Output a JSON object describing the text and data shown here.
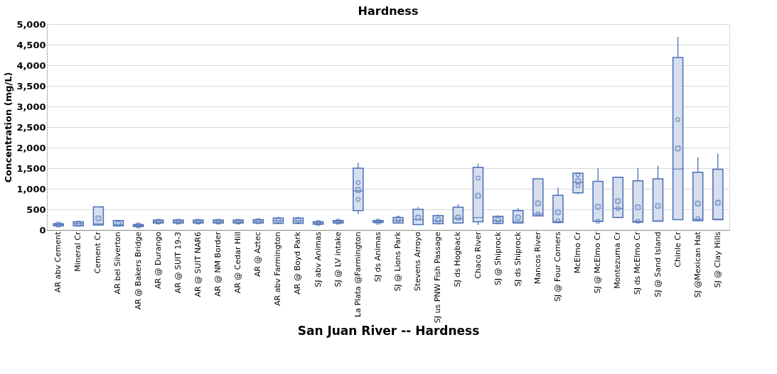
{
  "chart_data": {
    "type": "box",
    "title": "Hardness",
    "xlabel": "San Juan River -- Hardness",
    "ylabel": "Concentration (mg/L)",
    "categories": [
      "AR abv Cement",
      "Mineral Cr",
      "Cement Cr",
      "AR bel Silverton",
      "AR @ Bakers Bridge",
      "AR @ Durango",
      "AR @ SUIT 19-3",
      "AR @ SUIT NAR6",
      "AR @ NM Border",
      "AR @ Cedar Hill",
      "AR @ Aztec",
      "AR abv Farmington",
      "AR @ Boyd Park",
      "SJ abv Animas",
      "SJ @ LV intake",
      "La Plata @Farmington",
      "SJ ds Animas",
      "SJ @ Lions Park",
      "Stevens Arroyo",
      "SJ us PNW Fish Passage",
      "SJ ds Hogback",
      "Chaco River",
      "SJ @ Shiprock",
      "SJ ds Shiprock",
      "Mancos River",
      "SJ @ Four Corners",
      "McElmo Cr",
      "SJ @ McElmo Cr",
      "Montezuma Cr",
      "SJ ds McElmo Cr",
      "SJ @ Sand Island",
      "Chinle Cr",
      "SJ @Mexican Hat",
      "SJ @ Clay Hills"
    ],
    "color": "#4a6fb5",
    "boxes": [
      {
        "low": 80,
        "q1": 100,
        "median": 130,
        "q3": 150,
        "high": 170,
        "mean": 130
      },
      {
        "low": 90,
        "q1": 100,
        "median": 150,
        "q3": 200,
        "high": 210,
        "mean": 150
      },
      {
        "low": 100,
        "q1": 120,
        "median": 150,
        "q3": 560,
        "high": 560,
        "mean": 280
      },
      {
        "low": 90,
        "q1": 100,
        "median": 130,
        "q3": 230,
        "high": 230,
        "mean": 150
      },
      {
        "low": 60,
        "q1": 80,
        "median": 110,
        "q3": 130,
        "high": 160,
        "mean": 110
      },
      {
        "low": 150,
        "q1": 170,
        "median": 200,
        "q3": 240,
        "high": 260,
        "mean": 200
      },
      {
        "low": 150,
        "q1": 170,
        "median": 200,
        "q3": 240,
        "high": 260,
        "mean": 200
      },
      {
        "low": 150,
        "q1": 170,
        "median": 200,
        "q3": 240,
        "high": 260,
        "mean": 200
      },
      {
        "low": 150,
        "q1": 170,
        "median": 200,
        "q3": 240,
        "high": 260,
        "mean": 200
      },
      {
        "low": 150,
        "q1": 170,
        "median": 200,
        "q3": 240,
        "high": 260,
        "mean": 200
      },
      {
        "low": 150,
        "q1": 170,
        "median": 210,
        "q3": 250,
        "high": 270,
        "mean": 210
      },
      {
        "low": 140,
        "q1": 160,
        "median": 220,
        "q3": 290,
        "high": 320,
        "mean": 230
      },
      {
        "low": 140,
        "q1": 160,
        "median": 220,
        "q3": 290,
        "high": 320,
        "mean": 230
      },
      {
        "low": 120,
        "q1": 140,
        "median": 170,
        "q3": 200,
        "high": 220,
        "mean": 170
      },
      {
        "low": 160,
        "q1": 170,
        "median": 200,
        "q3": 230,
        "high": 240,
        "mean": 200
      },
      {
        "low": 390,
        "q1": 470,
        "median": 950,
        "q3": 1500,
        "high": 1630,
        "mean": 970,
        "outliers": [
          740,
          1150
        ]
      },
      {
        "low": 170,
        "q1": 180,
        "median": 200,
        "q3": 230,
        "high": 240,
        "mean": 200
      },
      {
        "low": 150,
        "q1": 170,
        "median": 230,
        "q3": 300,
        "high": 350,
        "mean": 260
      },
      {
        "low": 120,
        "q1": 130,
        "median": 250,
        "q3": 500,
        "high": 560,
        "mean": 300
      },
      {
        "low": 130,
        "q1": 150,
        "median": 220,
        "q3": 350,
        "high": 380,
        "mean": 250
      },
      {
        "low": 150,
        "q1": 170,
        "median": 280,
        "q3": 550,
        "high": 620,
        "mean": 300
      },
      {
        "low": 120,
        "q1": 200,
        "median": 300,
        "q3": 1520,
        "high": 1610,
        "mean": 830,
        "outliers": [
          1260
        ]
      },
      {
        "low": 130,
        "q1": 160,
        "median": 220,
        "q3": 330,
        "high": 360,
        "mean": 250
      },
      {
        "low": 150,
        "q1": 170,
        "median": 200,
        "q3": 470,
        "high": 530,
        "mean": 300
      },
      {
        "low": 340,
        "q1": 340,
        "median": 385,
        "q3": 1240,
        "high": 1240,
        "mean": 645,
        "outliers": [
          390
        ]
      },
      {
        "low": 180,
        "q1": 180,
        "median": 200,
        "q3": 840,
        "high": 1030,
        "mean": 430,
        "outliers": [
          220
        ]
      },
      {
        "low": 870,
        "q1": 900,
        "median": 1150,
        "q3": 1380,
        "high": 1380,
        "mean": 1190,
        "outliers": [
          1070,
          1340
        ]
      },
      {
        "low": 210,
        "q1": 210,
        "median": 210,
        "q3": 1180,
        "high": 1500,
        "mean": 560,
        "outliers": [
          210
        ]
      },
      {
        "low": 300,
        "q1": 300,
        "median": 520,
        "q3": 1280,
        "high": 1280,
        "mean": 700,
        "outliers": [
          520
        ]
      },
      {
        "low": 190,
        "q1": 190,
        "median": 210,
        "q3": 1195,
        "high": 1505,
        "mean": 550,
        "outliers": [
          210
        ]
      },
      {
        "low": 210,
        "q1": 210,
        "median": 220,
        "q3": 1240,
        "high": 1560,
        "mean": 585
      },
      {
        "low": 250,
        "q1": 250,
        "median": 1480,
        "q3": 4190,
        "high": 4690,
        "mean": 1980,
        "outliers": [
          2680
        ]
      },
      {
        "low": 225,
        "q1": 225,
        "median": 260,
        "q3": 1400,
        "high": 1765,
        "mean": 640,
        "outliers": [
          275
        ]
      },
      {
        "low": 250,
        "q1": 250,
        "median": 260,
        "q3": 1475,
        "high": 1855,
        "mean": 660
      }
    ],
    "ylim": [
      0,
      5000
    ],
    "yticks": [
      0,
      500,
      {
        "value": 1000,
        "label": "1,000"
      },
      {
        "value": 1500,
        "label": "1,500"
      },
      {
        "value": 2000,
        "label": "2,000"
      },
      {
        "value": 2500,
        "label": "2,500"
      },
      {
        "value": 3000,
        "label": "3,000"
      },
      {
        "value": 3500,
        "label": "3,500"
      },
      {
        "value": 4000,
        "label": "4,000"
      },
      {
        "value": 4500,
        "label": "4,500"
      },
      {
        "value": 5000,
        "label": "5,000"
      }
    ],
    "grid": "y"
  }
}
